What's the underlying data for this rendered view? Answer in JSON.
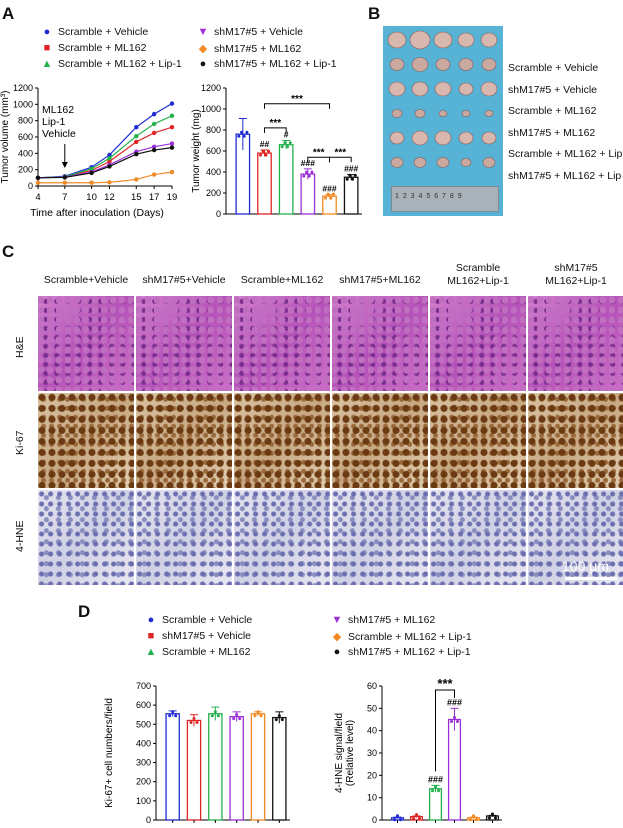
{
  "panels": {
    "A": "A",
    "B": "B",
    "C": "C",
    "D": "D"
  },
  "legendA": [
    {
      "label": "Scramble + Vehicle",
      "color": "#1f2bd1",
      "marker": "●"
    },
    {
      "label": "Scramble + ML162",
      "color": "#e02424",
      "marker": "■"
    },
    {
      "label": "Scramble + ML162 + Lip-1",
      "color": "#22b14c",
      "marker": "▲"
    },
    {
      "label": "shM17#5 + Vehicle",
      "color": "#9b30d9",
      "marker": "▼"
    },
    {
      "label": "shM17#5 + ML162",
      "color": "#f08a24",
      "marker": "◆"
    },
    {
      "label": "shM17#5 + ML162 + Lip-1",
      "color": "#111111",
      "marker": "●"
    }
  ],
  "chart_data": [
    {
      "type": "line",
      "ylabel": "Tumor volume (mm³)",
      "xlabel": "Time after inoculation (Days)",
      "x": [
        4,
        7,
        10,
        12,
        15,
        17,
        19
      ],
      "ylim": [
        0,
        1200
      ],
      "yticks": [
        "0",
        "200",
        "400",
        "600",
        "800",
        "1000",
        "1200"
      ],
      "xticks": [
        "4",
        "7",
        "10",
        "12",
        "15",
        "17",
        "19"
      ],
      "annotation": [
        "ML162",
        "Lip-1",
        "Vehicle"
      ],
      "series": [
        {
          "name": "Scramble + Vehicle",
          "color": "#1f2bd1",
          "values": [
            100,
            120,
            230,
            380,
            720,
            880,
            1010
          ]
        },
        {
          "name": "Scramble + ML162",
          "color": "#e02424",
          "values": [
            100,
            110,
            190,
            300,
            540,
            650,
            720
          ]
        },
        {
          "name": "Scramble + ML162 + Lip-1",
          "color": "#22b14c",
          "values": [
            100,
            115,
            210,
            340,
            610,
            760,
            860
          ]
        },
        {
          "name": "shM17#5 + Vehicle",
          "color": "#9b30d9",
          "values": [
            100,
            110,
            170,
            260,
            420,
            480,
            520
          ]
        },
        {
          "name": "shM17#5 + ML162",
          "color": "#f08a24",
          "values": [
            40,
            40,
            40,
            45,
            80,
            140,
            170
          ]
        },
        {
          "name": "shM17#5 + ML162 + Lip-1",
          "color": "#111111",
          "values": [
            100,
            105,
            160,
            240,
            390,
            440,
            470
          ]
        }
      ]
    },
    {
      "type": "bar",
      "ylabel": "Tumor weight (mg)",
      "ylim": [
        0,
        1200
      ],
      "yticks": [
        "0",
        "200",
        "400",
        "600",
        "800",
        "1000",
        "1200"
      ],
      "categories": [
        "Scramble + Vehicle",
        "Scramble + ML162",
        "Scramble + ML162 + Lip-1",
        "shM17#5 + Vehicle",
        "shM17#5 + ML162",
        "shM17#5 + ML162 + Lip-1"
      ],
      "colors": [
        "#1f2bd1",
        "#e02424",
        "#22b14c",
        "#9b30d9",
        "#f08a24",
        "#111111"
      ],
      "values": [
        760,
        580,
        660,
        380,
        170,
        350
      ],
      "errors": [
        150,
        30,
        40,
        50,
        15,
        25
      ],
      "labels": [
        "",
        "##",
        "#",
        "###",
        "###",
        "###"
      ],
      "significance": [
        "***",
        "***",
        "***",
        "***"
      ]
    },
    {
      "type": "bar",
      "ylabel": "Ki-67+ cell numbers/field",
      "ylim": [
        0,
        700
      ],
      "yticks": [
        "0",
        "100",
        "200",
        "300",
        "400",
        "500",
        "600",
        "700"
      ],
      "categories": [
        "Scramble + Vehicle",
        "shM17#5 + Vehicle",
        "Scramble + ML162",
        "shM17#5 + ML162",
        "Scramble + ML162 + Lip-1",
        "shM17#5 + ML162 + Lip-1"
      ],
      "colors": [
        "#1f2bd1",
        "#e02424",
        "#22b14c",
        "#9b30d9",
        "#f08a24",
        "#111111"
      ],
      "values": [
        555,
        520,
        555,
        540,
        555,
        535
      ],
      "errors": [
        15,
        30,
        35,
        25,
        10,
        30
      ]
    },
    {
      "type": "bar",
      "ylabel": "4-HNE signal/field (Relative level)",
      "ylim": [
        0,
        60
      ],
      "yticks": [
        "0",
        "10",
        "20",
        "30",
        "40",
        "50",
        "60"
      ],
      "categories": [
        "Scramble + Vehicle",
        "shM17#5 + Vehicle",
        "Scramble + ML162",
        "shM17#5 + ML162",
        "Scramble + ML162 + Lip-1",
        "shM17#5 + ML162 + Lip-1"
      ],
      "colors": [
        "#1f2bd1",
        "#e02424",
        "#22b14c",
        "#9b30d9",
        "#f08a24",
        "#111111"
      ],
      "values": [
        1,
        1.5,
        14,
        45,
        1,
        1.8
      ],
      "errors": [
        0.3,
        0.3,
        1.5,
        5,
        0.3,
        0.3
      ],
      "labels": [
        "",
        "",
        "###",
        "###",
        "",
        ""
      ],
      "significance": [
        "***"
      ]
    }
  ],
  "panelB": {
    "samples": [
      "Scramble + Vehicle",
      "shM17#5 + Vehicle",
      "Scramble + ML162",
      "shM17#5 + ML162",
      "Scramble + ML162 + Lip",
      "shM17#5 + ML162 + Lip"
    ],
    "ruler": "1 2 3 4 5 6 7 8 9"
  },
  "panelC": {
    "columns": [
      "Scramble+Vehicle",
      "shM17#5+Vehicle",
      "Scramble+ML162",
      "shM17#5+ML162",
      "Scramble\nML162+Lip-1",
      "shM17#5\nML162+Lip-1"
    ],
    "rows": [
      "H&E",
      "Ki-67",
      "4-HNE"
    ],
    "scale": "100 μm"
  },
  "legendD": [
    {
      "label": "Scramble + Vehicle",
      "color": "#1f2bd1",
      "marker": "●"
    },
    {
      "label": "shM17#5 + Vehicle",
      "color": "#e02424",
      "marker": "■"
    },
    {
      "label": "Scramble + ML162",
      "color": "#22b14c",
      "marker": "▲"
    },
    {
      "label": "shM17#5 + ML162",
      "color": "#9b30d9",
      "marker": "▼"
    },
    {
      "label": "Scramble + ML162 + Lip-1",
      "color": "#f08a24",
      "marker": "◆"
    },
    {
      "label": "shM17#5 + ML162 + Lip-1",
      "color": "#111111",
      "marker": "●"
    }
  ]
}
